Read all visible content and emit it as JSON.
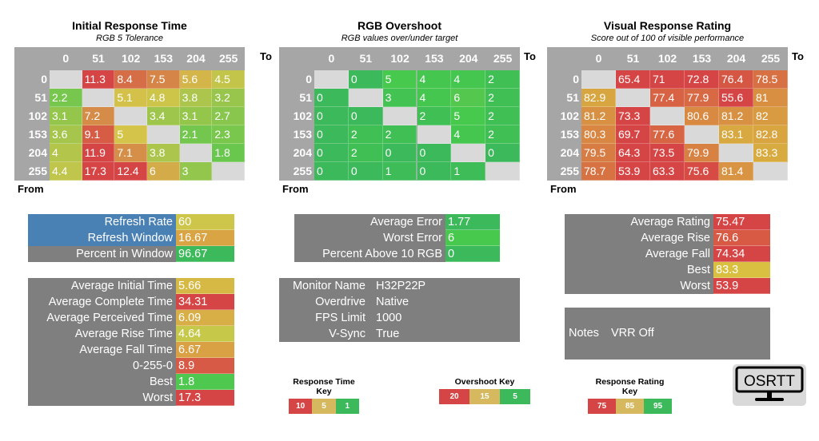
{
  "cols": [
    "0",
    "51",
    "102",
    "153",
    "204",
    "255"
  ],
  "to_label": "To",
  "from_label": "From",
  "tables": [
    {
      "title": "Initial Response Time",
      "subtitle": "RGB 5 Tolerance",
      "scale": "time",
      "rows": [
        [
          "",
          "11.3",
          "8.4",
          "7.5",
          "5.6",
          "4.5"
        ],
        [
          "2.2",
          "",
          "5.1",
          "4.8",
          "3.8",
          "3.2"
        ],
        [
          "3.1",
          "7.2",
          "",
          "3.4",
          "3.1",
          "2.7"
        ],
        [
          "3.6",
          "9.1",
          "5",
          "",
          "2.1",
          "2.3"
        ],
        [
          "4",
          "11.9",
          "7.1",
          "3.8",
          "",
          "1.8"
        ],
        [
          "4.4",
          "17.3",
          "12.4",
          "6",
          "3",
          ""
        ]
      ]
    },
    {
      "title": "RGB Overshoot",
      "subtitle": "RGB values over/under target",
      "scale": "overshoot",
      "rows": [
        [
          "",
          "0",
          "5",
          "4",
          "4",
          "2"
        ],
        [
          "0",
          "",
          "3",
          "4",
          "6",
          "2"
        ],
        [
          "0",
          "0",
          "",
          "2",
          "5",
          "2"
        ],
        [
          "0",
          "2",
          "2",
          "",
          "4",
          "2"
        ],
        [
          "0",
          "2",
          "0",
          "0",
          "",
          "0"
        ],
        [
          "0",
          "0",
          "1",
          "0",
          "1",
          ""
        ]
      ]
    },
    {
      "title": "Visual Response Rating",
      "subtitle": "Score out of 100 of visible performance",
      "scale": "rating",
      "rows": [
        [
          "",
          "65.4",
          "71",
          "72.8",
          "76.4",
          "78.5"
        ],
        [
          "82.9",
          "",
          "77.4",
          "77.9",
          "55.6",
          "81"
        ],
        [
          "81.2",
          "73.3",
          "",
          "80.6",
          "81.2",
          "82"
        ],
        [
          "80.3",
          "69.7",
          "77.6",
          "",
          "83.1",
          "82.8"
        ],
        [
          "79.5",
          "64.3",
          "73.5",
          "79.9",
          "",
          "83.3"
        ],
        [
          "78.7",
          "53.9",
          "63.3",
          "75.6",
          "81.4",
          ""
        ]
      ]
    }
  ],
  "scales": {
    "time": [
      [
        1,
        "#4fc84f"
      ],
      [
        5,
        "#d4c44a"
      ],
      [
        10,
        "#d64545"
      ]
    ],
    "overshoot": [
      [
        0,
        "#3cb95a"
      ],
      [
        5,
        "#46c94c"
      ],
      [
        15,
        "#d6b85e"
      ],
      [
        20,
        "#d64545"
      ]
    ],
    "rating": [
      [
        75,
        "#d64545"
      ],
      [
        85,
        "#d9c040"
      ],
      [
        95,
        "#3cb95a"
      ]
    ]
  },
  "refresh": [
    {
      "label": "Refresh Rate",
      "value": "60",
      "bg": "#4a81b4",
      "color": "#cdc64a"
    },
    {
      "label": "Refresh Window",
      "value": "16.67",
      "bg": "#4a81b4",
      "color": "#d9a444"
    },
    {
      "label": "Percent in Window",
      "value": "96.67",
      "bg": "#7f7f7f",
      "color": "#3cb95a"
    }
  ],
  "times": [
    {
      "label": "Average Initial Time",
      "value": "5.66",
      "color": "#d6b844"
    },
    {
      "label": "Average Complete Time",
      "value": "34.31",
      "color": "#d64545"
    },
    {
      "label": "Average Perceived Time",
      "value": "6.09",
      "color": "#d8ae46"
    },
    {
      "label": "Average Rise Time",
      "value": "4.64",
      "color": "#c6c84a"
    },
    {
      "label": "Average Fall Time",
      "value": "6.67",
      "color": "#d9a044"
    },
    {
      "label": "0-255-0",
      "value": "8.9",
      "color": "#d65a45"
    },
    {
      "label": "Best",
      "value": "1.8",
      "color": "#4fc84f"
    },
    {
      "label": "Worst",
      "value": "17.3",
      "color": "#d64545"
    }
  ],
  "overshoot_summary": [
    {
      "label": "Average Error",
      "value": "1.77",
      "color": "#3cb95a"
    },
    {
      "label": "Worst Error",
      "value": "6",
      "color": "#46c94c"
    },
    {
      "label": "Percent Above 10 RGB",
      "value": "0",
      "color": "#3cb95a"
    }
  ],
  "monitor": [
    {
      "label": "Monitor Name",
      "value": "H32P22P"
    },
    {
      "label": "Overdrive",
      "value": "Native"
    },
    {
      "label": "FPS Limit",
      "value": "1000"
    },
    {
      "label": "V-Sync",
      "value": "True"
    }
  ],
  "rating_summary": [
    {
      "label": "Average Rating",
      "value": "75.47",
      "color": "#d64545"
    },
    {
      "label": "Average Rise",
      "value": "76.6",
      "color": "#d85a45"
    },
    {
      "label": "Average Fall",
      "value": "74.34",
      "color": "#d64545"
    },
    {
      "label": "Best",
      "value": "83.3",
      "color": "#d9c040"
    },
    {
      "label": "Worst",
      "value": "53.9",
      "color": "#d64545"
    }
  ],
  "notes": {
    "label": "Notes",
    "value": "VRR Off"
  },
  "keys": [
    {
      "title": "Response Time Key",
      "items": [
        "10",
        "5",
        "1"
      ]
    },
    {
      "title": "Overshoot Key",
      "items": [
        "20",
        "15",
        "5"
      ]
    },
    {
      "title": "Response Rating Key",
      "items": [
        "75",
        "85",
        "95"
      ]
    }
  ],
  "key_colors": [
    "#d64545",
    "#d6b85e",
    "#3cb95a"
  ],
  "logo_text": "OSRTT"
}
